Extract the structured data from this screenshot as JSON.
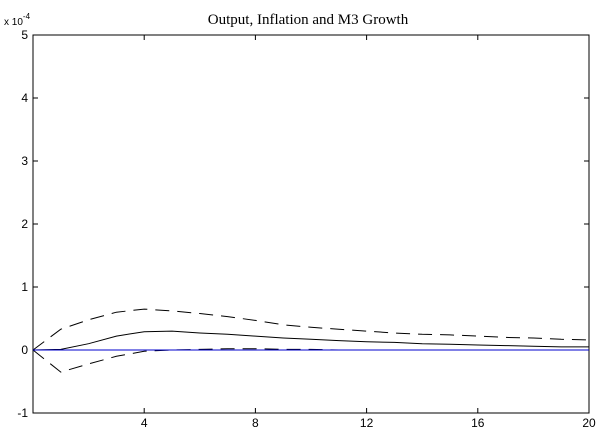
{
  "chart_data": {
    "type": "line",
    "title": "Output, Inflation and M3 Growth",
    "xlabel": "",
    "ylabel": "",
    "y_exponent_label": {
      "base": "x 10",
      "exponent": "-4"
    },
    "xlim": [
      0,
      20
    ],
    "ylim": [
      -1,
      5
    ],
    "x_ticks": [
      4,
      8,
      12,
      16,
      20
    ],
    "y_ticks": [
      -1,
      0,
      1,
      2,
      3,
      4,
      5
    ],
    "grid": false,
    "x": [
      0,
      1,
      2,
      3,
      4,
      5,
      6,
      7,
      8,
      9,
      10,
      11,
      12,
      13,
      14,
      15,
      16,
      17,
      18,
      19,
      20
    ],
    "series": [
      {
        "style": "dashed",
        "color": "#000000",
        "values": [
          0,
          0.33,
          0.48,
          0.6,
          0.65,
          0.62,
          0.58,
          0.53,
          0.47,
          0.4,
          0.36,
          0.33,
          0.3,
          0.27,
          0.25,
          0.24,
          0.22,
          0.2,
          0.19,
          0.17,
          0.16
        ]
      },
      {
        "style": "solid",
        "color": "#000000",
        "values": [
          0,
          0.01,
          0.1,
          0.22,
          0.29,
          0.3,
          0.27,
          0.25,
          0.22,
          0.19,
          0.17,
          0.15,
          0.13,
          0.12,
          0.1,
          0.09,
          0.08,
          0.07,
          0.06,
          0.05,
          0.05
        ]
      },
      {
        "style": "dashed",
        "color": "#000000",
        "values": [
          0,
          -0.35,
          -0.22,
          -0.1,
          -0.02,
          0.0,
          0.01,
          0.02,
          0.02,
          0.01,
          0.01,
          0.0,
          0.0,
          0.0,
          0.0,
          0.0,
          0.0,
          0.0,
          0.0,
          0.0,
          0.0
        ]
      },
      {
        "style": "solid",
        "color": "#0000cc",
        "values": [
          0,
          0,
          0,
          0,
          0,
          0,
          0,
          0,
          0,
          0,
          0,
          0,
          0,
          0,
          0,
          0,
          0,
          0,
          0,
          0,
          0
        ]
      }
    ]
  }
}
